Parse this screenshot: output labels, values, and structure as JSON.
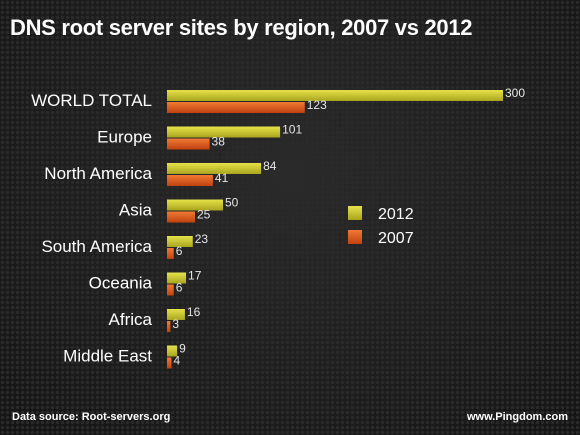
{
  "title": "DNS root server sites by region, 2007 vs 2012",
  "footer": {
    "source": "Data source: Root-servers.org",
    "site": "www.Pingdom.com"
  },
  "colors": {
    "series_2012": "#c8c42c",
    "series_2007": "#de5a1e"
  },
  "chart_data": {
    "type": "bar",
    "orientation": "horizontal",
    "title": "DNS root server sites by region, 2007 vs 2012",
    "categories": [
      "WORLD TOTAL",
      "Europe",
      "North America",
      "Asia",
      "South America",
      "Oceania",
      "Africa",
      "Middle East"
    ],
    "series": [
      {
        "name": "2012",
        "values": [
          300,
          101,
          84,
          50,
          23,
          17,
          16,
          9
        ]
      },
      {
        "name": "2007",
        "values": [
          123,
          38,
          41,
          25,
          6,
          6,
          3,
          4
        ]
      }
    ],
    "xlim": [
      0,
      300
    ],
    "grid": false,
    "legend_position": "right",
    "data_labels": true
  }
}
